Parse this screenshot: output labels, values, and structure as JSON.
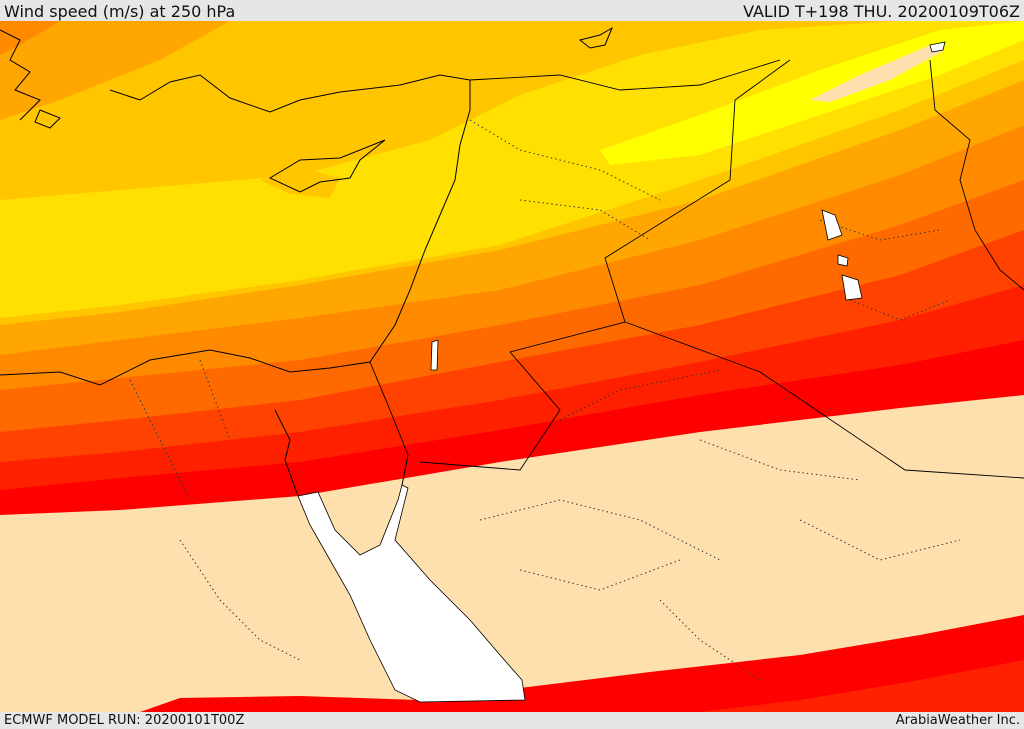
{
  "header": {
    "title": "Wind speed (m/s) at 250 hPa",
    "valid": "VALID T+198 THU. 20200109T06Z"
  },
  "footer": {
    "model_run": "ECMWF MODEL RUN: 20200101T00Z",
    "credit": "ArabiaWeather Inc."
  },
  "map": {
    "bands": [
      {
        "name": "low",
        "color": "#fde0ad"
      },
      {
        "name": "b1",
        "color": "#ffff00"
      },
      {
        "name": "b2",
        "color": "#ffe000"
      },
      {
        "name": "b3",
        "color": "#ffc600"
      },
      {
        "name": "b4",
        "color": "#ffa600"
      },
      {
        "name": "b5",
        "color": "#ff8a00"
      },
      {
        "name": "b6",
        "color": "#ff6a00"
      },
      {
        "name": "b7",
        "color": "#ff4200"
      },
      {
        "name": "b8",
        "color": "#ff2000"
      },
      {
        "name": "core",
        "color": "#ff0000"
      },
      {
        "name": "sea",
        "color": "#ffffff"
      }
    ]
  }
}
